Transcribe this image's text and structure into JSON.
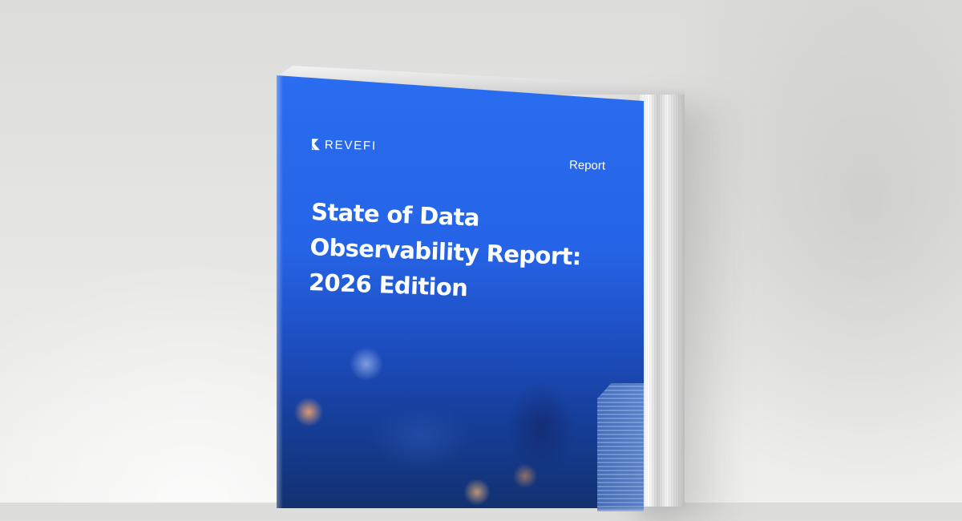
{
  "cover": {
    "brand": "REVEFI",
    "tag": "Report",
    "title_lines": [
      "State of Data",
      "Observability Report:",
      "2026 Edition"
    ]
  },
  "colors": {
    "cover_blue": "#2564e6",
    "background": "#e5e5e3"
  },
  "icons": {
    "logo_mark": "revefi-logo-icon"
  }
}
